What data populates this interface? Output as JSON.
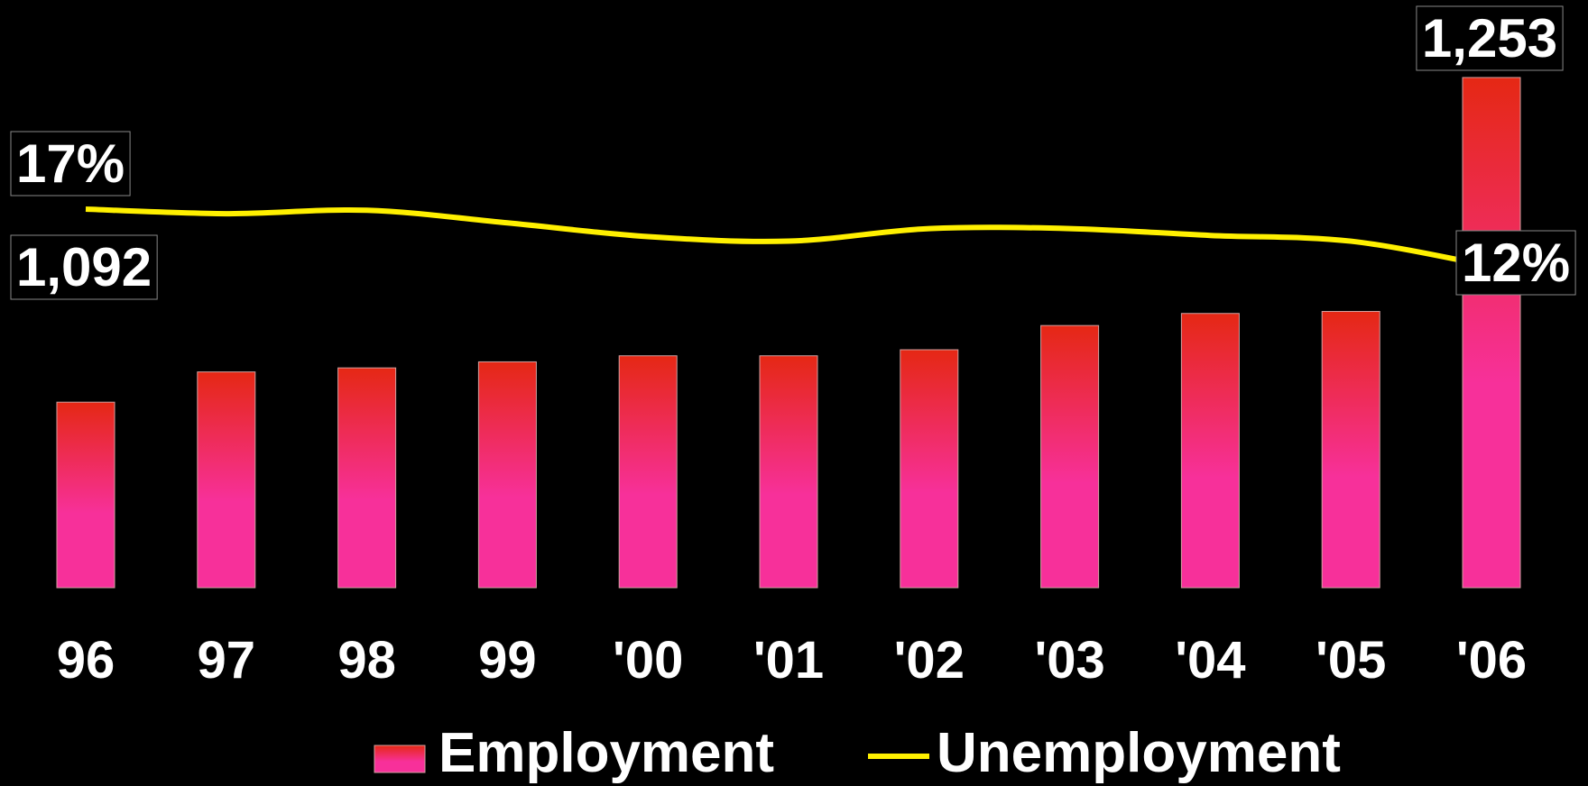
{
  "chart_data": {
    "type": "bar",
    "categories": [
      "96",
      "97",
      "98",
      "99",
      "'00",
      "'01",
      "'02",
      "'03",
      "'04",
      "'05",
      "'06"
    ],
    "series": [
      {
        "name": "Employment",
        "kind": "bar",
        "values": [
          1092,
          1107,
          1109,
          1112,
          1115,
          1115,
          1118,
          1130,
          1136,
          1137,
          1253
        ]
      },
      {
        "name": "Unemployment",
        "kind": "line",
        "unit": "%",
        "values": [
          17,
          16.6,
          16.9,
          15.8,
          14.6,
          14.2,
          15.3,
          15.3,
          14.7,
          14.2,
          12
        ]
      }
    ],
    "data_labels": {
      "employment_first": "1,092",
      "employment_last": "1,253",
      "unemployment_first": "17%",
      "unemployment_last": "12%"
    },
    "legend": {
      "placement": "bottom",
      "items": [
        "Employment",
        "Unemployment"
      ]
    },
    "colors": {
      "background": "#000000",
      "bar_top": "#e52814",
      "bar_bottom": "#f7309a",
      "line": "#fff000",
      "text": "#ffffff"
    }
  }
}
